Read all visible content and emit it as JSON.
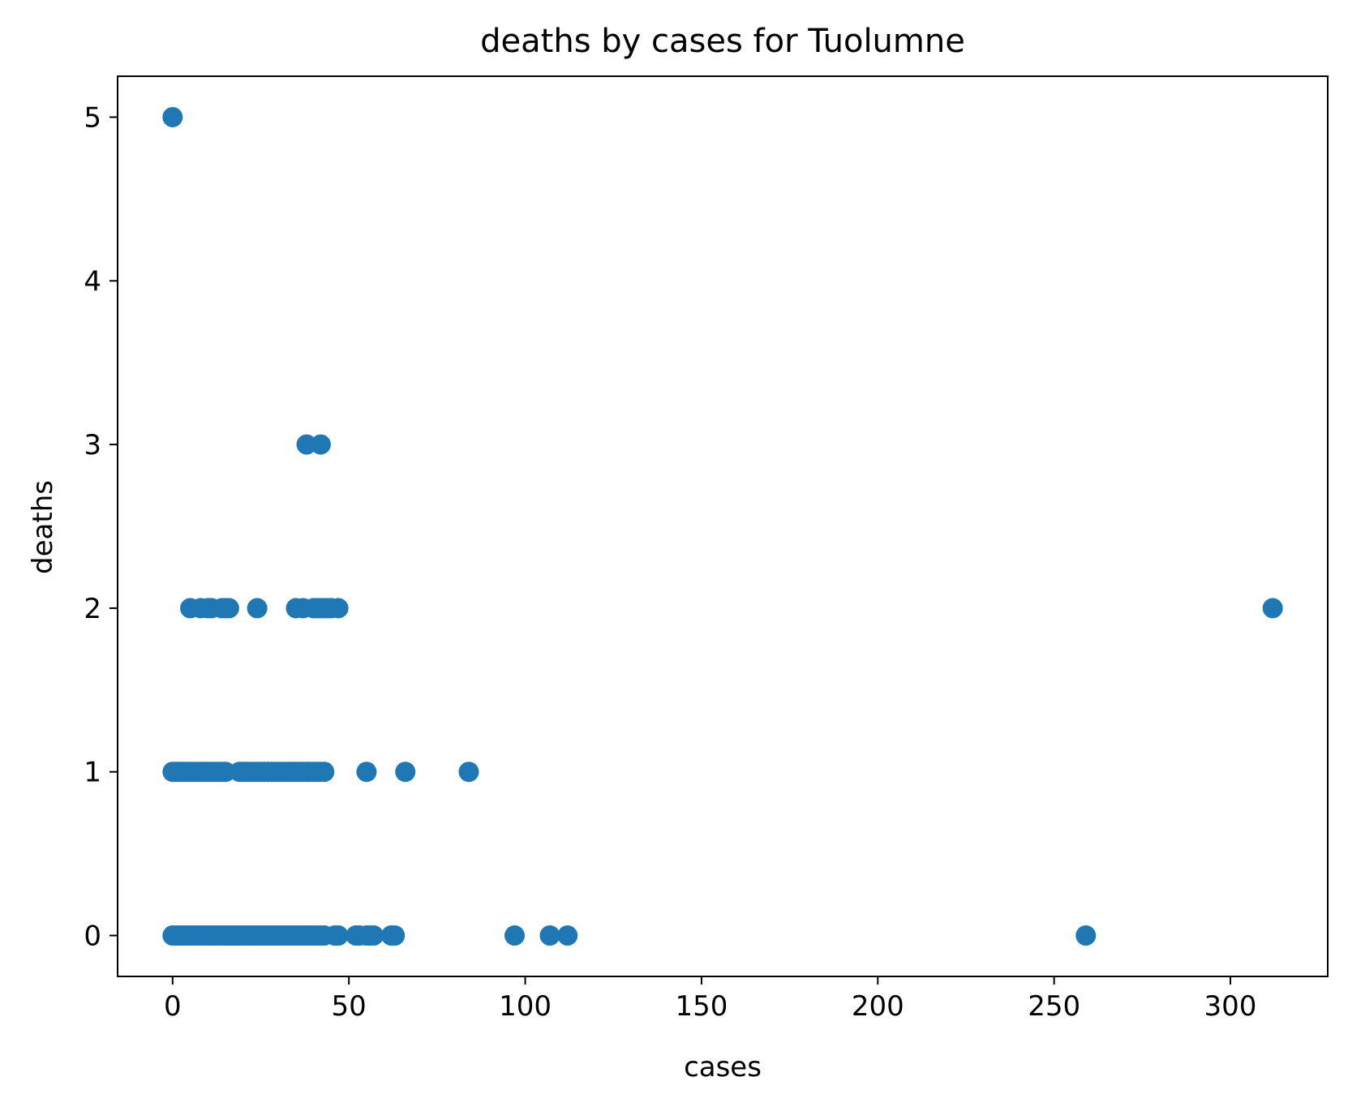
{
  "chart_data": {
    "type": "scatter",
    "title": "deaths by cases for Tuolumne",
    "xlabel": "cases",
    "ylabel": "deaths",
    "xlim": [
      -15.6,
      327.6
    ],
    "ylim": [
      -0.25,
      5.25
    ],
    "xticks": [
      0,
      50,
      100,
      150,
      200,
      250,
      300
    ],
    "yticks": [
      0,
      1,
      2,
      3,
      4,
      5
    ],
    "grid": false,
    "legend": "none",
    "colors": {
      "marker": "#1f77b4",
      "axes": "#000000",
      "background": "#ffffff"
    },
    "series": [
      {
        "points": [
          [
            0,
            5
          ],
          [
            38,
            3
          ],
          [
            42,
            3
          ],
          [
            312,
            2
          ],
          [
            5,
            2
          ],
          [
            8,
            2
          ],
          [
            10,
            2
          ],
          [
            11,
            2
          ],
          [
            14,
            2
          ],
          [
            15,
            2
          ],
          [
            16,
            2
          ],
          [
            24,
            2
          ],
          [
            35,
            2
          ],
          [
            37,
            2
          ],
          [
            40,
            2
          ],
          [
            41,
            2
          ],
          [
            42,
            2
          ],
          [
            43,
            2
          ],
          [
            44,
            2
          ],
          [
            45,
            2
          ],
          [
            47,
            2
          ],
          [
            0,
            1
          ],
          [
            1,
            1
          ],
          [
            2,
            1
          ],
          [
            3,
            1
          ],
          [
            4,
            1
          ],
          [
            5,
            1
          ],
          [
            6,
            1
          ],
          [
            7,
            1
          ],
          [
            8,
            1
          ],
          [
            9,
            1
          ],
          [
            10,
            1
          ],
          [
            11,
            1
          ],
          [
            12,
            1
          ],
          [
            13,
            1
          ],
          [
            14,
            1
          ],
          [
            15,
            1
          ],
          [
            19,
            1
          ],
          [
            20,
            1
          ],
          [
            21,
            1
          ],
          [
            22,
            1
          ],
          [
            23,
            1
          ],
          [
            24,
            1
          ],
          [
            25,
            1
          ],
          [
            26,
            1
          ],
          [
            27,
            1
          ],
          [
            28,
            1
          ],
          [
            29,
            1
          ],
          [
            30,
            1
          ],
          [
            31,
            1
          ],
          [
            32,
            1
          ],
          [
            33,
            1
          ],
          [
            34,
            1
          ],
          [
            35,
            1
          ],
          [
            36,
            1
          ],
          [
            37,
            1
          ],
          [
            38,
            1
          ],
          [
            39,
            1
          ],
          [
            40,
            1
          ],
          [
            41,
            1
          ],
          [
            42,
            1
          ],
          [
            43,
            1
          ],
          [
            55,
            1
          ],
          [
            66,
            1
          ],
          [
            84,
            1
          ],
          [
            0,
            0
          ],
          [
            1,
            0
          ],
          [
            2,
            0
          ],
          [
            3,
            0
          ],
          [
            4,
            0
          ],
          [
            5,
            0
          ],
          [
            6,
            0
          ],
          [
            7,
            0
          ],
          [
            8,
            0
          ],
          [
            9,
            0
          ],
          [
            10,
            0
          ],
          [
            11,
            0
          ],
          [
            12,
            0
          ],
          [
            13,
            0
          ],
          [
            14,
            0
          ],
          [
            15,
            0
          ],
          [
            16,
            0
          ],
          [
            17,
            0
          ],
          [
            18,
            0
          ],
          [
            19,
            0
          ],
          [
            20,
            0
          ],
          [
            21,
            0
          ],
          [
            22,
            0
          ],
          [
            23,
            0
          ],
          [
            24,
            0
          ],
          [
            25,
            0
          ],
          [
            26,
            0
          ],
          [
            27,
            0
          ],
          [
            28,
            0
          ],
          [
            29,
            0
          ],
          [
            30,
            0
          ],
          [
            31,
            0
          ],
          [
            32,
            0
          ],
          [
            33,
            0
          ],
          [
            34,
            0
          ],
          [
            35,
            0
          ],
          [
            36,
            0
          ],
          [
            37,
            0
          ],
          [
            38,
            0
          ],
          [
            39,
            0
          ],
          [
            40,
            0
          ],
          [
            41,
            0
          ],
          [
            42,
            0
          ],
          [
            43,
            0
          ],
          [
            46,
            0
          ],
          [
            47,
            0
          ],
          [
            52,
            0
          ],
          [
            53,
            0
          ],
          [
            55,
            0
          ],
          [
            56,
            0
          ],
          [
            57,
            0
          ],
          [
            62,
            0
          ],
          [
            63,
            0
          ],
          [
            97,
            0
          ],
          [
            107,
            0
          ],
          [
            112,
            0
          ],
          [
            259,
            0
          ]
        ]
      }
    ]
  }
}
